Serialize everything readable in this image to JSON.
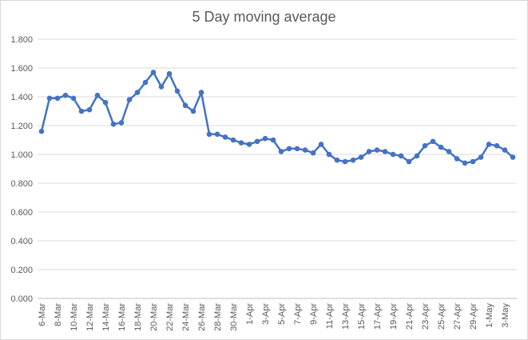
{
  "chart_data": {
    "type": "line",
    "title": "5 Day moving average",
    "xlabel": "",
    "ylabel": "",
    "ylim": [
      0,
      1.8
    ],
    "yticks": [
      "0.000",
      "0.200",
      "0.400",
      "0.600",
      "0.800",
      "1.000",
      "1.200",
      "1.400",
      "1.600",
      "1.800"
    ],
    "grid": true,
    "legend": "none",
    "colors": {
      "line": "#4472c4",
      "grid": "#d9d9d9",
      "text": "#595959"
    },
    "x": [
      "6-Mar",
      "7-Mar",
      "8-Mar",
      "9-Mar",
      "10-Mar",
      "11-Mar",
      "12-Mar",
      "13-Mar",
      "14-Mar",
      "15-Mar",
      "16-Mar",
      "17-Mar",
      "18-Mar",
      "19-Mar",
      "20-Mar",
      "21-Mar",
      "22-Mar",
      "23-Mar",
      "24-Mar",
      "25-Mar",
      "26-Mar",
      "27-Mar",
      "28-Mar",
      "29-Mar",
      "30-Mar",
      "31-Mar",
      "1-Apr",
      "2-Apr",
      "3-Apr",
      "4-Apr",
      "5-Apr",
      "6-Apr",
      "7-Apr",
      "8-Apr",
      "9-Apr",
      "10-Apr",
      "11-Apr",
      "12-Apr",
      "13-Apr",
      "14-Apr",
      "15-Apr",
      "16-Apr",
      "17-Apr",
      "18-Apr",
      "19-Apr",
      "20-Apr",
      "21-Apr",
      "22-Apr",
      "23-Apr",
      "24-Apr",
      "25-Apr",
      "26-Apr",
      "27-Apr",
      "28-Apr",
      "29-Apr",
      "30-Apr",
      "1-May",
      "2-May",
      "3-May",
      "4-May"
    ],
    "xticklabels": [
      "6-Mar",
      "8-Mar",
      "10-Mar",
      "12-Mar",
      "14-Mar",
      "16-Mar",
      "18-Mar",
      "20-Mar",
      "22-Mar",
      "24-Mar",
      "26-Mar",
      "28-Mar",
      "30-Mar",
      "1-Apr",
      "3-Apr",
      "5-Apr",
      "7-Apr",
      "9-Apr",
      "11-Apr",
      "13-Apr",
      "15-Apr",
      "17-Apr",
      "19-Apr",
      "21-Apr",
      "23-Apr",
      "25-Apr",
      "27-Apr",
      "29-Apr",
      "1-May",
      "3-May"
    ],
    "series": [
      {
        "values": [
          1.16,
          1.39,
          1.39,
          1.41,
          1.39,
          1.3,
          1.31,
          1.41,
          1.36,
          1.21,
          1.22,
          1.38,
          1.43,
          1.5,
          1.57,
          1.47,
          1.56,
          1.44,
          1.34,
          1.3,
          1.43,
          1.14,
          1.14,
          1.12,
          1.1,
          1.08,
          1.07,
          1.09,
          1.11,
          1.1,
          1.02,
          1.04,
          1.04,
          1.03,
          1.01,
          1.07,
          1.0,
          0.96,
          0.95,
          0.96,
          0.98,
          1.02,
          1.03,
          1.02,
          1.0,
          0.99,
          0.95,
          0.99,
          1.06,
          1.09,
          1.05,
          1.02,
          0.97,
          0.94,
          0.95,
          0.98,
          1.07,
          1.06,
          1.03,
          0.98
        ]
      }
    ]
  }
}
